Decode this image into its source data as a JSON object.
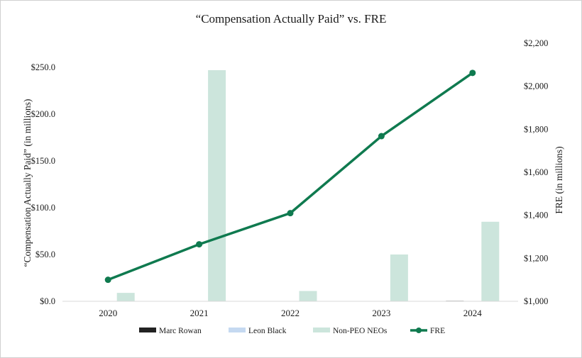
{
  "chart_data": {
    "type": "bar",
    "title": "“Compensation Actually Paid” vs. FRE",
    "categories": [
      "2020",
      "2021",
      "2022",
      "2023",
      "2024"
    ],
    "y_left": {
      "label": "“Compensation Actually Paid” (in millions)",
      "range": [
        0,
        250
      ],
      "ticks": [
        0,
        50,
        100,
        150,
        200,
        250
      ],
      "tick_labels": [
        "$0.0",
        "$50.0",
        "$100.0",
        "$150.0",
        "$200.0",
        "$250.0"
      ]
    },
    "y_right": {
      "label": "FRE (in millions)",
      "range": [
        1000,
        2200
      ],
      "ticks": [
        1000,
        1200,
        1400,
        1600,
        1800,
        2000,
        2200
      ],
      "tick_labels": [
        "$1,000",
        "$1,200",
        "$1,400",
        "$1,600",
        "$1,800",
        "$2,000",
        "$2,200"
      ]
    },
    "series": [
      {
        "name": "Marc Rowan",
        "type": "bar",
        "axis": "left",
        "color": "#222222",
        "values": [
          0,
          0,
          0,
          0,
          0.5
        ]
      },
      {
        "name": "Leon Black",
        "type": "bar",
        "axis": "left",
        "color": "#c5d9f1",
        "values": [
          0,
          0,
          0,
          0,
          0
        ]
      },
      {
        "name": "Non-PEO NEOs",
        "type": "bar",
        "axis": "left",
        "color": "#cce5dc",
        "values": [
          9,
          247,
          11,
          50,
          85
        ]
      },
      {
        "name": "FRE",
        "type": "line",
        "axis": "right",
        "color": "#0f7a4f",
        "values": [
          1100,
          1265,
          1410,
          1768,
          2062
        ]
      }
    ],
    "grid": false,
    "legend_position": "bottom"
  }
}
